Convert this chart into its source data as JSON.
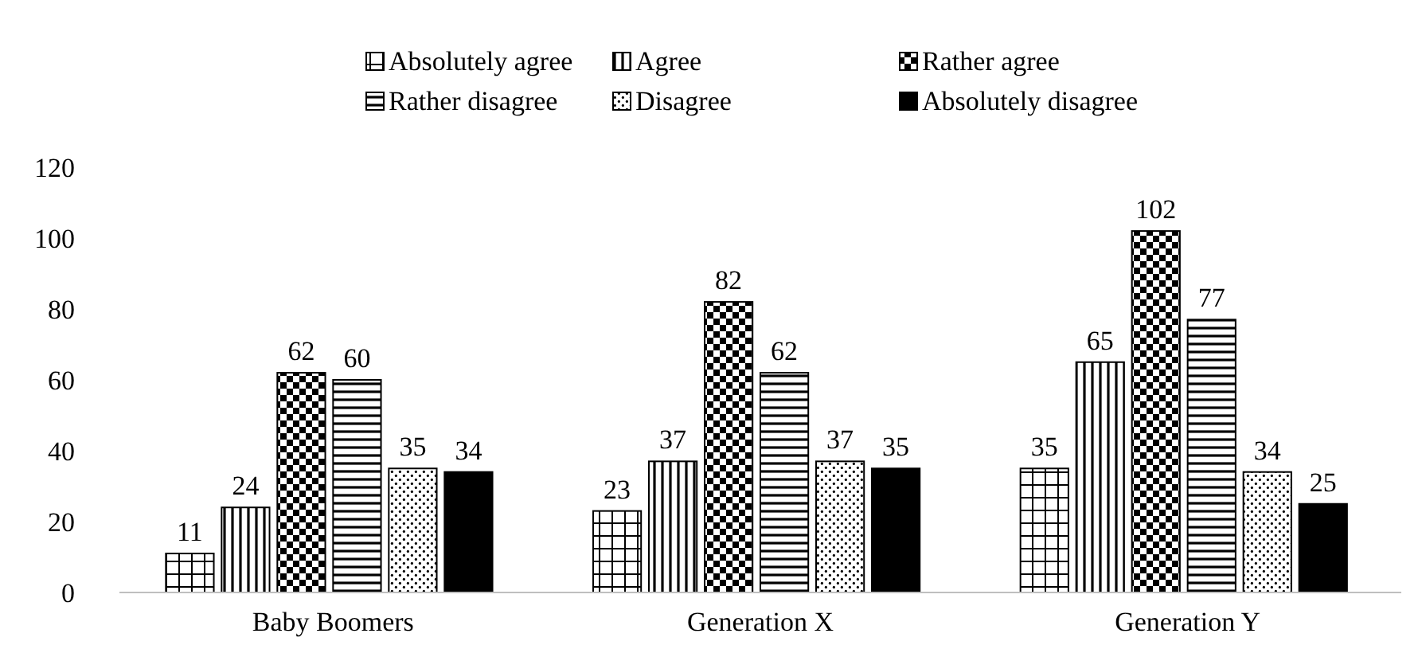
{
  "chart_data": {
    "type": "bar",
    "categories": [
      "Baby Boomers",
      "Generation X",
      "Generation Y"
    ],
    "series": [
      {
        "name": "Absolutely agree",
        "color": "#000000",
        "values": [
          11,
          23,
          35
        ]
      },
      {
        "name": "Agree",
        "color": "#000000",
        "values": [
          24,
          37,
          65
        ]
      },
      {
        "name": "Rather agree",
        "color": "#000000",
        "values": [
          62,
          82,
          102
        ]
      },
      {
        "name": "Rather disagree",
        "color": "#000000",
        "values": [
          60,
          62,
          77
        ]
      },
      {
        "name": "Disagree",
        "color": "#000000",
        "values": [
          35,
          37,
          34
        ]
      },
      {
        "name": "Absolutely disagree",
        "color": "#000000",
        "values": [
          34,
          35,
          25
        ]
      }
    ],
    "ylim": [
      0,
      120
    ],
    "yticks": [
      0,
      20,
      40,
      60,
      80,
      100,
      120
    ],
    "data_labels": true,
    "legend": "top",
    "grid": false
  }
}
